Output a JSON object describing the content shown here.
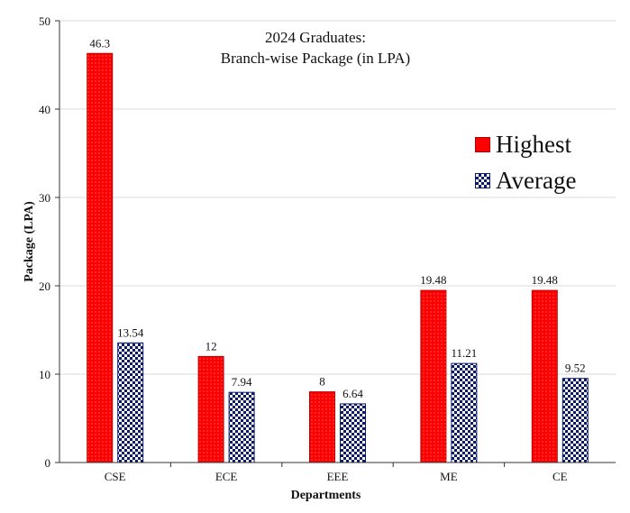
{
  "colors": {
    "highest": "#ff0000",
    "average": "#0a1a6a",
    "grid": "#d9d9d9",
    "axis": "#333333"
  },
  "chart_data": {
    "type": "bar",
    "title_line1": "2024 Graduates:",
    "title_line2": "Branch-wise Package (in LPA)",
    "xlabel": "Departments",
    "ylabel": "Package (LPA)",
    "ylim": [
      0,
      50
    ],
    "yticks": [
      0,
      10,
      20,
      30,
      40,
      50
    ],
    "grid": true,
    "legend_position": "right",
    "categories": [
      "CSE",
      "ECE",
      "EEE",
      "ME",
      "CE"
    ],
    "series": [
      {
        "name": "Highest",
        "values": [
          46.3,
          12,
          8,
          19.48,
          19.48
        ],
        "labels": [
          "46.3",
          "12",
          "8",
          "19.48",
          "19.48"
        ]
      },
      {
        "name": "Average",
        "values": [
          13.54,
          7.94,
          6.64,
          11.21,
          9.52
        ],
        "labels": [
          "13.54",
          "7.94",
          "6.64",
          "11.21",
          "9.52"
        ]
      }
    ]
  }
}
